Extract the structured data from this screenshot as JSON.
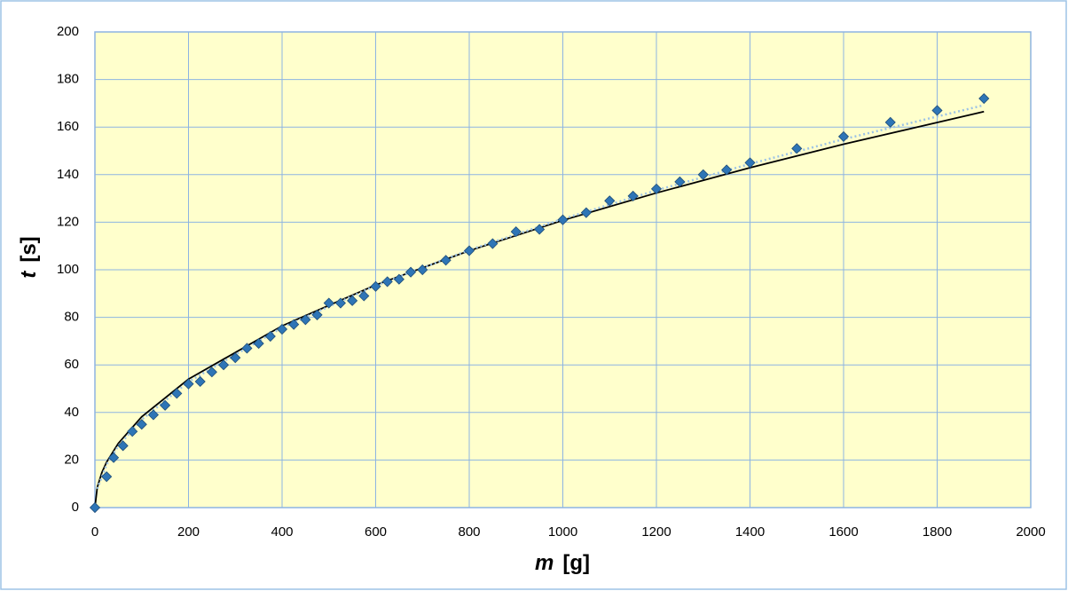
{
  "chart_data": {
    "type": "scatter",
    "xlabel": {
      "symbol": "m",
      "unit": "[g]"
    },
    "ylabel": {
      "symbol": "t",
      "unit": "[s]"
    },
    "xlim": [
      0,
      2000
    ],
    "ylim": [
      0,
      200
    ],
    "xticks": [
      0,
      200,
      400,
      600,
      800,
      1000,
      1200,
      1400,
      1600,
      1800,
      2000
    ],
    "yticks": [
      0,
      20,
      40,
      60,
      80,
      100,
      120,
      140,
      160,
      180,
      200
    ],
    "grid": true,
    "plot_background": "#ffffcc",
    "grid_color": "#8db4e2",
    "series": [
      {
        "type": "scatter",
        "color": "#2e75b6",
        "x": [
          0,
          25,
          40,
          60,
          80,
          100,
          125,
          150,
          175,
          200,
          225,
          250,
          275,
          300,
          325,
          350,
          375,
          400,
          425,
          450,
          475,
          500,
          525,
          550,
          575,
          600,
          625,
          650,
          675,
          700,
          750,
          800,
          850,
          900,
          950,
          1000,
          1050,
          1100,
          1150,
          1200,
          1250,
          1300,
          1350,
          1400,
          1500,
          1600,
          1700,
          1800,
          1900
        ],
        "values": [
          0,
          13,
          21,
          26,
          32,
          35,
          39,
          43,
          48,
          52,
          53,
          57,
          60,
          63,
          67,
          69,
          72,
          75,
          77,
          79,
          81,
          86,
          86,
          87,
          89,
          93,
          95,
          96,
          99,
          100,
          104,
          108,
          111,
          116,
          117,
          121,
          124,
          129,
          131,
          134,
          137,
          140,
          142,
          145,
          151,
          156,
          162,
          167,
          172
        ]
      },
      {
        "type": "line",
        "color": "#000000",
        "dash": "solid",
        "x": [
          0,
          5,
          15,
          25,
          50,
          100,
          200,
          400,
          600,
          800,
          1000,
          1200,
          1400,
          1600,
          1900
        ],
        "values": [
          0,
          8.5,
          14.8,
          19.1,
          27.0,
          38.2,
          54.0,
          76.4,
          93.6,
          108.0,
          120.8,
          132.3,
          142.9,
          152.8,
          166.5
        ]
      },
      {
        "type": "line",
        "color": "#9dc3e6",
        "dash": "dotted",
        "x": [
          5,
          25,
          50,
          100,
          200,
          400,
          600,
          800,
          1000,
          1200,
          1400,
          1600,
          1900
        ],
        "values": [
          7.9,
          18.1,
          25.9,
          37.0,
          52.9,
          75.7,
          93.3,
          108.3,
          121.4,
          133.4,
          144.5,
          154.9,
          169.2
        ]
      }
    ]
  }
}
